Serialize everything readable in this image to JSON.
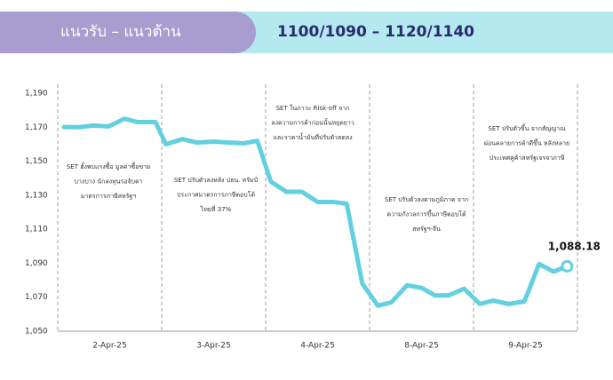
{
  "header": {
    "title": "แนวรับ – แนวต้าน",
    "levels": "1100/1090 – 1120/1140"
  },
  "chart_data": {
    "type": "line",
    "x": [
      0.06,
      0.21,
      0.34,
      0.49,
      0.64,
      0.77,
      0.94,
      1.04,
      1.2,
      1.34,
      1.5,
      1.65,
      1.79,
      1.92,
      2.05,
      2.2,
      2.35,
      2.5,
      2.65,
      2.78,
      2.93,
      3.08,
      3.21,
      3.36,
      3.5,
      3.63,
      3.76,
      3.91,
      4.06,
      4.19,
      4.34,
      4.49,
      4.63,
      4.77,
      4.9
    ],
    "values": [
      1170.1,
      1170,
      1171,
      1170.5,
      1175,
      1173,
      1173,
      1160,
      1163,
      1161,
      1161.5,
      1161,
      1160.5,
      1162,
      1138,
      1132,
      1132,
      1126,
      1126,
      1125,
      1078,
      1065,
      1067,
      1077,
      1075.5,
      1071,
      1071,
      1075,
      1066,
      1068,
      1066,
      1067.5,
      1089.5,
      1085,
      1088.18
    ],
    "value_labels": {
      "34": "1,088.18"
    },
    "color": "#62d0e0",
    "xlim": [
      0,
      5
    ],
    "xticks": [
      {
        "value": 0.5,
        "label": "2-Apr-25"
      },
      {
        "value": 1.5,
        "label": "3-Apr-25"
      },
      {
        "value": 2.5,
        "label": "4-Apr-25"
      },
      {
        "value": 3.5,
        "label": "8-Apr-25"
      },
      {
        "value": 4.5,
        "label": "9-Apr-25"
      }
    ],
    "dividers": [
      0,
      1,
      2,
      3,
      4,
      5
    ],
    "ylim": [
      1050,
      1190
    ],
    "yticks": [
      {
        "value": 1050,
        "label": "1,050"
      },
      {
        "value": 1070,
        "label": "1,070"
      },
      {
        "value": 1090,
        "label": "1,090"
      },
      {
        "value": 1110,
        "label": "1,110"
      },
      {
        "value": 1130,
        "label": "1,130"
      },
      {
        "value": 1150,
        "label": "1,150"
      },
      {
        "value": 1170,
        "label": "1,170"
      },
      {
        "value": 1190,
        "label": "1,190"
      }
    ],
    "annotations": [
      [
        "SET ฮั้งพบแรงซื้อ มูลค่าซื้อขาย",
        "บางบาง นักลงทุนรอจับตา",
        "มาตรการภาษีสหรัฐฯ"
      ],
      [
        "SET ปรับตัวลงหลัง ปธน. ทรัมป์",
        "ประกาศมาตรการภาษีตอบโต้",
        "ไทยที่ 37%"
      ],
      [
        "SET ในภาวะ Risk-off จาก",
        "ลงความการค้าก่อนนั้นหยุดยาว",
        "และราคาน้ำมันที่ปรับตัวลดลง"
      ],
      [
        "SET ปรับตัวลงตามภูมิภาค จาก",
        "ความกังวลการขึ้นภาษีตอบโต้",
        "สหรัฐฯ-จีน"
      ],
      [
        "SET ปรับตัวขึ้น จากสัญญาณ",
        "ผ่อนคลายการค้าดีขึ้น หลังหลาย",
        "ประเทศคู่ค้าสหรัฐเจรจาภาษี"
      ]
    ]
  }
}
